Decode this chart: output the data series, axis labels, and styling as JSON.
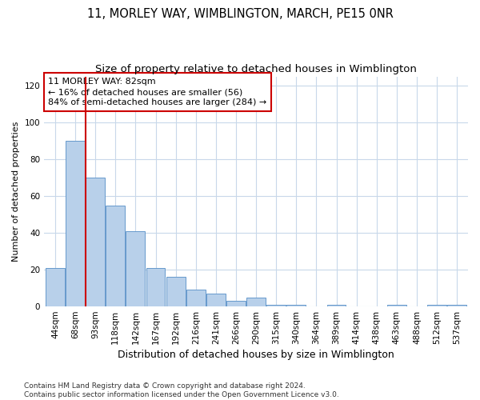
{
  "title": "11, MORLEY WAY, WIMBLINGTON, MARCH, PE15 0NR",
  "subtitle": "Size of property relative to detached houses in Wimblington",
  "xlabel": "Distribution of detached houses by size in Wimblington",
  "ylabel": "Number of detached properties",
  "categories": [
    "44sqm",
    "68sqm",
    "93sqm",
    "118sqm",
    "142sqm",
    "167sqm",
    "192sqm",
    "216sqm",
    "241sqm",
    "266sqm",
    "290sqm",
    "315sqm",
    "340sqm",
    "364sqm",
    "389sqm",
    "414sqm",
    "438sqm",
    "463sqm",
    "488sqm",
    "512sqm",
    "537sqm"
  ],
  "bar_heights": [
    21,
    90,
    70,
    55,
    41,
    21,
    16,
    9,
    7,
    3,
    5,
    1,
    1,
    0,
    1,
    0,
    0,
    1,
    0,
    1,
    1
  ],
  "bar_color": "#b8d0ea",
  "bar_edge_color": "#6699cc",
  "vline_x": 1.5,
  "vline_color": "#cc0000",
  "annotation_text": "11 MORLEY WAY: 82sqm\n← 16% of detached houses are smaller (56)\n84% of semi-detached houses are larger (284) →",
  "annotation_box_color": "#ffffff",
  "annotation_box_edge": "#cc0000",
  "ylim": [
    0,
    125
  ],
  "yticks": [
    0,
    20,
    40,
    60,
    80,
    100,
    120
  ],
  "background_color": "#ffffff",
  "grid_color": "#c8d8ea",
  "footnote": "Contains HM Land Registry data © Crown copyright and database right 2024.\nContains public sector information licensed under the Open Government Licence v3.0.",
  "title_fontsize": 10.5,
  "subtitle_fontsize": 9.5,
  "xlabel_fontsize": 9,
  "ylabel_fontsize": 8,
  "tick_fontsize": 7.5,
  "annotation_fontsize": 8,
  "footnote_fontsize": 6.5
}
